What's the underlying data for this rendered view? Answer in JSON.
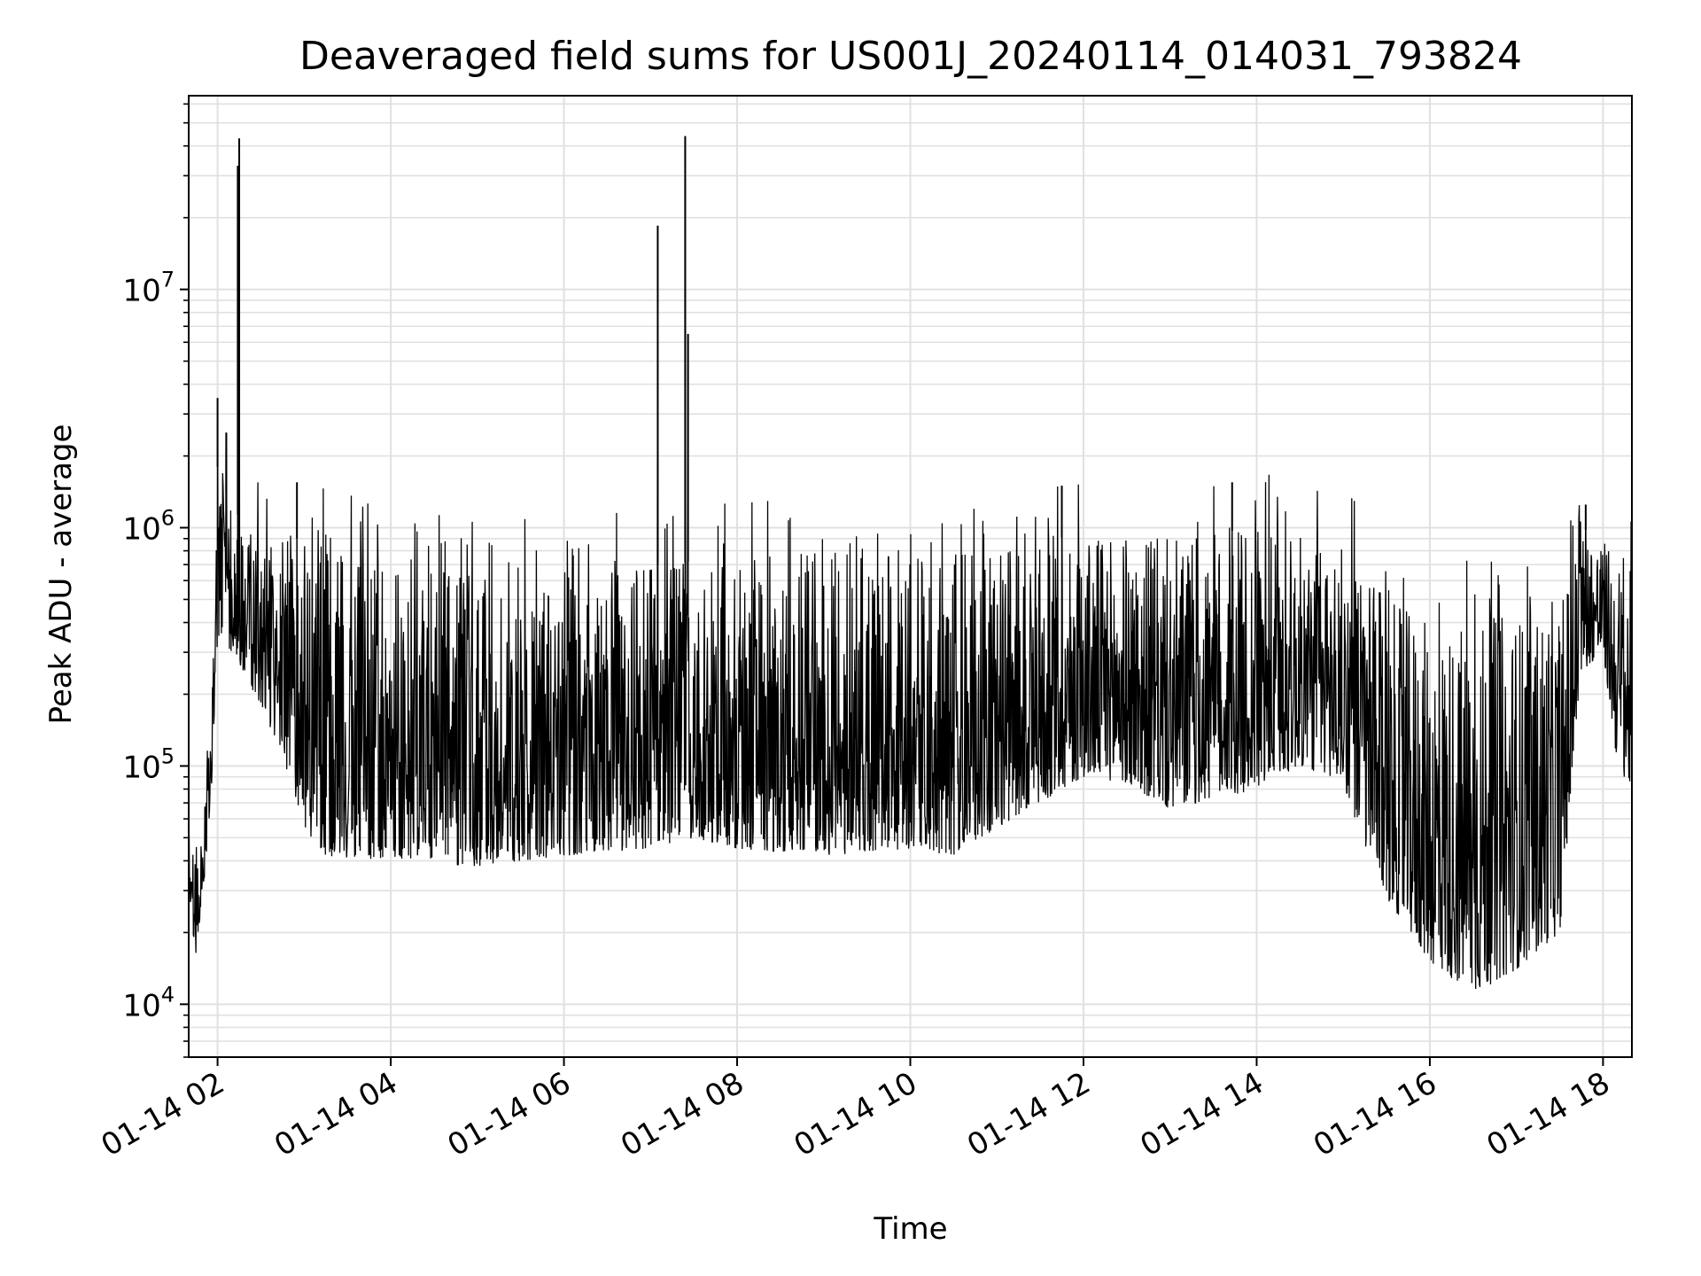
{
  "chart_data": {
    "type": "line",
    "title": "Deaveraged field sums for US001J_20240114_014031_793824",
    "xlabel": "Time",
    "ylabel": "Peak ADU - average",
    "yscale": "log",
    "ylim": [
      6000,
      65000000
    ],
    "xlim": [
      "01-14 01:40",
      "01-14 18:20"
    ],
    "grid": true,
    "line_color": "#000000",
    "grid_color": "#e0e0e0",
    "x_ticks": [
      {
        "x": "01-14 02:00",
        "label": "01-14 02"
      },
      {
        "x": "01-14 04:00",
        "label": "01-14 04"
      },
      {
        "x": "01-14 06:00",
        "label": "01-14 06"
      },
      {
        "x": "01-14 08:00",
        "label": "01-14 08"
      },
      {
        "x": "01-14 10:00",
        "label": "01-14 10"
      },
      {
        "x": "01-14 12:00",
        "label": "01-14 12"
      },
      {
        "x": "01-14 14:00",
        "label": "01-14 14"
      },
      {
        "x": "01-14 16:00",
        "label": "01-14 16"
      },
      {
        "x": "01-14 18:00",
        "label": "01-14 18"
      }
    ],
    "y_ticks": [
      {
        "value": 10000,
        "base": "10",
        "exp": "4"
      },
      {
        "value": 100000,
        "base": "10",
        "exp": "5"
      },
      {
        "value": 1000000,
        "base": "10",
        "exp": "6"
      },
      {
        "value": 10000000,
        "base": "10",
        "exp": "7"
      }
    ],
    "series": [
      {
        "lower_envelope": [
          {
            "x": "01-14 01:40",
            "y": 30000
          },
          {
            "x": "01-14 01:45",
            "y": 15000
          },
          {
            "x": "01-14 01:55",
            "y": 60000
          },
          {
            "x": "01-14 02:00",
            "y": 350000
          },
          {
            "x": "01-14 02:10",
            "y": 300000
          },
          {
            "x": "01-14 02:30",
            "y": 180000
          },
          {
            "x": "01-14 02:45",
            "y": 110000
          },
          {
            "x": "01-14 03:00",
            "y": 55000
          },
          {
            "x": "01-14 03:15",
            "y": 42000
          },
          {
            "x": "01-14 04:00",
            "y": 40000
          },
          {
            "x": "01-14 05:00",
            "y": 38000
          },
          {
            "x": "01-14 06:00",
            "y": 42000
          },
          {
            "x": "01-14 07:00",
            "y": 45000
          },
          {
            "x": "01-14 07:30",
            "y": 50000
          },
          {
            "x": "01-14 08:00",
            "y": 45000
          },
          {
            "x": "01-14 09:00",
            "y": 42000
          },
          {
            "x": "01-14 10:00",
            "y": 45000
          },
          {
            "x": "01-14 10:30",
            "y": 42000
          },
          {
            "x": "01-14 11:00",
            "y": 55000
          },
          {
            "x": "01-14 11:30",
            "y": 70000
          },
          {
            "x": "01-14 12:00",
            "y": 90000
          },
          {
            "x": "01-14 12:30",
            "y": 85000
          },
          {
            "x": "01-14 13:00",
            "y": 65000
          },
          {
            "x": "01-14 14:00",
            "y": 80000
          },
          {
            "x": "01-14 14:30",
            "y": 100000
          },
          {
            "x": "01-14 15:00",
            "y": 85000
          },
          {
            "x": "01-14 15:15",
            "y": 45000
          },
          {
            "x": "01-14 15:30",
            "y": 28000
          },
          {
            "x": "01-14 16:00",
            "y": 15000
          },
          {
            "x": "01-14 16:30",
            "y": 11000
          },
          {
            "x": "01-14 17:00",
            "y": 14000
          },
          {
            "x": "01-14 17:30",
            "y": 20000
          },
          {
            "x": "01-14 17:45",
            "y": 250000
          },
          {
            "x": "01-14 18:00",
            "y": 300000
          },
          {
            "x": "01-14 18:10",
            "y": 100000
          },
          {
            "x": "01-14 18:20",
            "y": 80000
          }
        ],
        "upper_envelope": [
          {
            "x": "01-14 01:40",
            "y": 50000
          },
          {
            "x": "01-14 01:45",
            "y": 45000
          },
          {
            "x": "01-14 01:55",
            "y": 150000
          },
          {
            "x": "01-14 02:00",
            "y": 1800000
          },
          {
            "x": "01-14 02:10",
            "y": 1200000
          },
          {
            "x": "01-14 02:30",
            "y": 900000
          },
          {
            "x": "01-14 03:00",
            "y": 900000
          },
          {
            "x": "01-14 04:00",
            "y": 700000
          },
          {
            "x": "01-14 05:00",
            "y": 650000
          },
          {
            "x": "01-14 06:00",
            "y": 600000
          },
          {
            "x": "01-14 07:00",
            "y": 700000
          },
          {
            "x": "01-14 08:00",
            "y": 750000
          },
          {
            "x": "01-14 09:00",
            "y": 800000
          },
          {
            "x": "01-14 10:00",
            "y": 750000
          },
          {
            "x": "01-14 11:00",
            "y": 800000
          },
          {
            "x": "01-14 12:00",
            "y": 950000
          },
          {
            "x": "01-14 13:00",
            "y": 900000
          },
          {
            "x": "01-14 14:00",
            "y": 1000000
          },
          {
            "x": "01-14 15:00",
            "y": 850000
          },
          {
            "x": "01-14 15:30",
            "y": 500000
          },
          {
            "x": "01-14 16:00",
            "y": 400000
          },
          {
            "x": "01-14 17:00",
            "y": 450000
          },
          {
            "x": "01-14 17:30",
            "y": 500000
          },
          {
            "x": "01-14 17:45",
            "y": 1000000
          },
          {
            "x": "01-14 18:00",
            "y": 900000
          },
          {
            "x": "01-14 18:20",
            "y": 650000
          }
        ],
        "spikes": [
          {
            "x": "01-14 02:00",
            "y": 3500000
          },
          {
            "x": "01-14 02:06",
            "y": 2500000
          },
          {
            "x": "01-14 02:14",
            "y": 33000000
          },
          {
            "x": "01-14 02:15",
            "y": 43000000
          },
          {
            "x": "01-14 02:55",
            "y": 1550000
          },
          {
            "x": "01-14 07:05",
            "y": 18500000
          },
          {
            "x": "01-14 07:24",
            "y": 44000000
          },
          {
            "x": "01-14 07:26",
            "y": 6500000
          },
          {
            "x": "01-14 11:45",
            "y": 1500000
          },
          {
            "x": "01-14 13:43",
            "y": 1550000
          },
          {
            "x": "01-14 17:48",
            "y": 1250000
          }
        ]
      }
    ]
  }
}
